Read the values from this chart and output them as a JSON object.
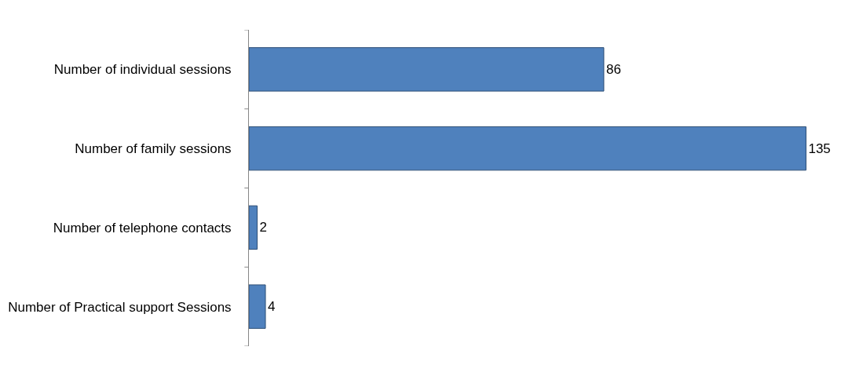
{
  "chart_data": {
    "type": "bar",
    "orientation": "horizontal",
    "categories": [
      "Number of individual sessions",
      "Number of family sessions",
      "Number of telephone contacts",
      "Number of Practical support Sessions"
    ],
    "values": [
      86,
      135,
      2,
      4
    ],
    "color": "#4f81bd",
    "data_labels": true,
    "legend": false,
    "tick_labels": "y"
  }
}
